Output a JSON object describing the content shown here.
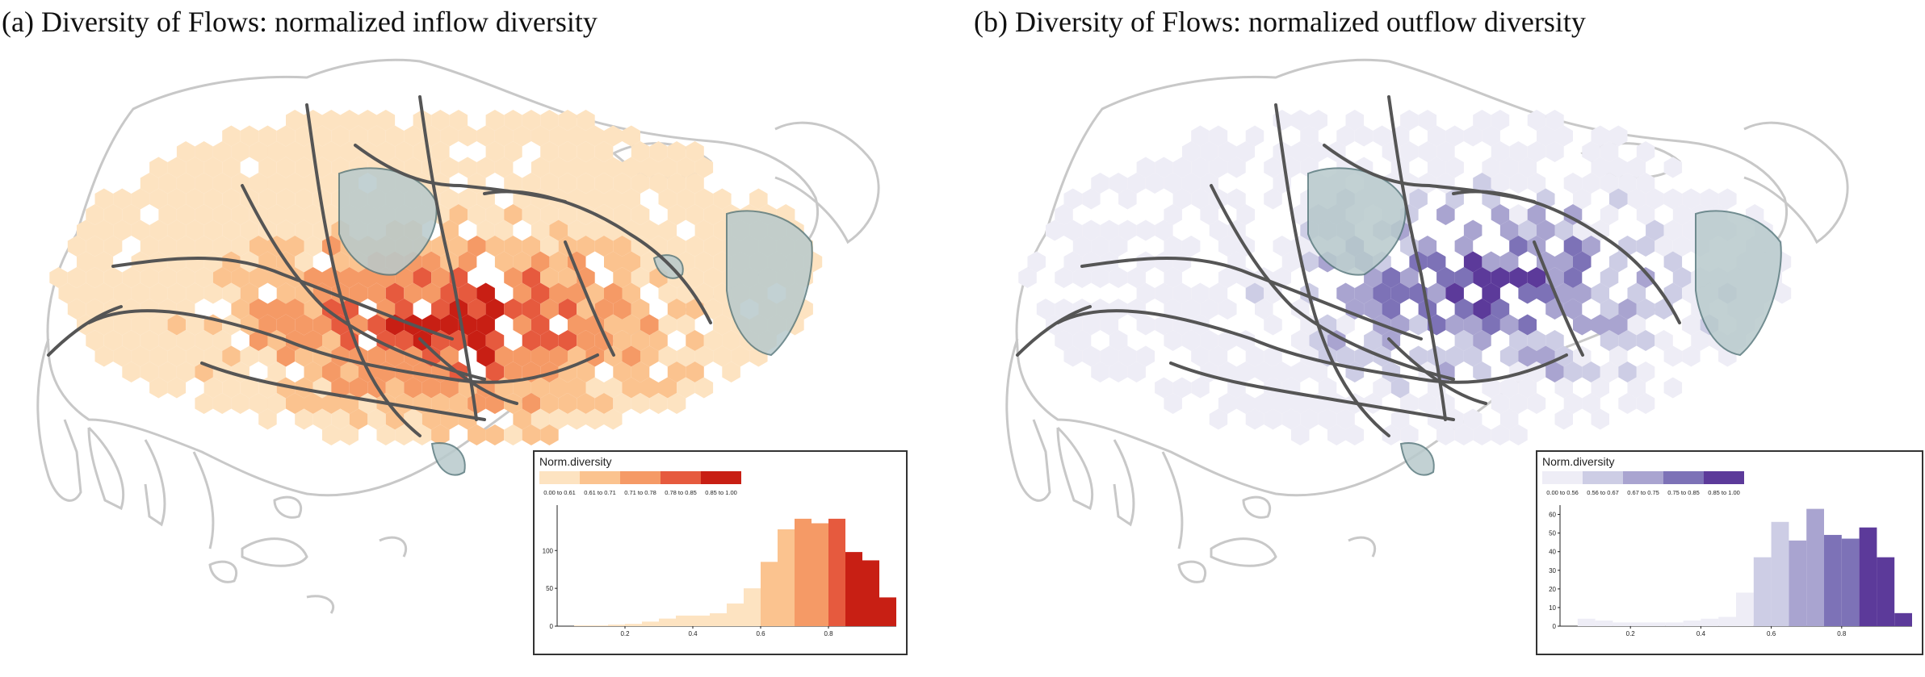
{
  "panels": [
    {
      "title": "(a) Diversity of Flows: normalized inflow diversity",
      "legend": {
        "title": "Norm.diversity",
        "bins": [
          {
            "label": "0.00 to 0.61",
            "color": "#fde3c1"
          },
          {
            "label": "0.61 to 0.71",
            "color": "#fbc38f"
          },
          {
            "label": "0.71 to 0.78",
            "color": "#f59a66"
          },
          {
            "label": "0.78 to 0.85",
            "color": "#e65a3e"
          },
          {
            "label": "0.85 to 1.00",
            "color": "#c81f14"
          }
        ]
      },
      "chart_data": {
        "type": "bar",
        "xlabel": "",
        "ylabel": "",
        "xlim": [
          0,
          1.0
        ],
        "ylim": [
          0,
          160
        ],
        "xticks": [
          "0.2",
          "0.4",
          "0.6",
          "0.8"
        ],
        "yticks": [
          "0",
          "50",
          "100"
        ],
        "bin_edges": [
          0.05,
          0.1,
          0.15,
          0.2,
          0.25,
          0.3,
          0.35,
          0.4,
          0.45,
          0.5,
          0.55,
          0.6,
          0.65,
          0.7,
          0.75,
          0.8,
          0.85,
          0.9,
          0.95,
          1.0
        ],
        "values": [
          1,
          1,
          2,
          3,
          6,
          10,
          14,
          14,
          17,
          30,
          50,
          85,
          128,
          142,
          136,
          142,
          98,
          87,
          38
        ]
      }
    },
    {
      "title": "(b) Diversity of Flows: normalized outflow diversity",
      "legend": {
        "title": "Norm.diversity",
        "bins": [
          {
            "label": "0.00 to 0.56",
            "color": "#eeedf6"
          },
          {
            "label": "0.56 to 0.67",
            "color": "#cdcde5"
          },
          {
            "label": "0.67 to 0.75",
            "color": "#a9a4d0"
          },
          {
            "label": "0.75 to 0.85",
            "color": "#7d72b7"
          },
          {
            "label": "0.85 to 1.00",
            "color": "#5c3a9a"
          }
        ]
      },
      "chart_data": {
        "type": "bar",
        "xlabel": "",
        "ylabel": "",
        "xlim": [
          0,
          1.0
        ],
        "ylim": [
          0,
          65
        ],
        "xticks": [
          "0.2",
          "0.4",
          "0.6",
          "0.8"
        ],
        "yticks": [
          "0",
          "10",
          "20",
          "30",
          "40",
          "50",
          "60"
        ],
        "bin_edges": [
          0.05,
          0.1,
          0.15,
          0.2,
          0.25,
          0.3,
          0.35,
          0.4,
          0.45,
          0.5,
          0.55,
          0.6,
          0.65,
          0.7,
          0.75,
          0.8,
          0.85,
          0.9,
          0.95,
          1.0
        ],
        "values": [
          4,
          3,
          2,
          2,
          2,
          2,
          3,
          4,
          5,
          18,
          37,
          56,
          46,
          63,
          49,
          47,
          53,
          37,
          7
        ]
      }
    }
  ]
}
